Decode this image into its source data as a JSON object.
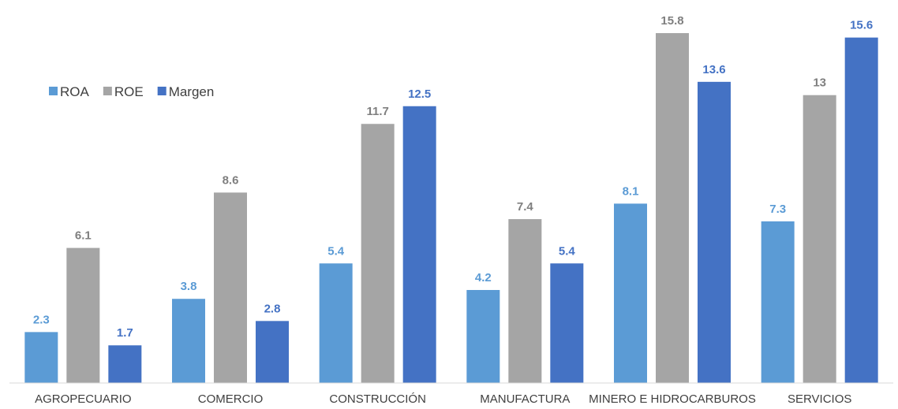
{
  "chart_data": {
    "type": "bar",
    "title": "",
    "xlabel": "",
    "ylabel": "",
    "categories": [
      "AGROPECUARIO",
      "COMERCIO",
      "CONSTRUCCIÓN",
      "MANUFACTURA",
      "MINERO E HIDROCARBUROS",
      "SERVICIOS"
    ],
    "series": [
      {
        "name": "ROA",
        "color": "#5B9BD5",
        "label_color": "#5B9BD5",
        "values": [
          2.3,
          3.8,
          5.4,
          4.2,
          8.1,
          7.3
        ]
      },
      {
        "name": "ROE",
        "color": "#A5A5A5",
        "label_color": "#7F7F7F",
        "values": [
          6.1,
          8.6,
          11.7,
          7.4,
          15.8,
          13
        ]
      },
      {
        "name": "Margen",
        "color": "#4472C4",
        "label_color": "#4472C4",
        "values": [
          1.7,
          2.8,
          12.5,
          5.4,
          13.6,
          15.6
        ]
      }
    ],
    "ylim": [
      0,
      17
    ],
    "grid": false,
    "y_axis_visible": false,
    "data_labels": true,
    "legend_position": "top-left"
  }
}
